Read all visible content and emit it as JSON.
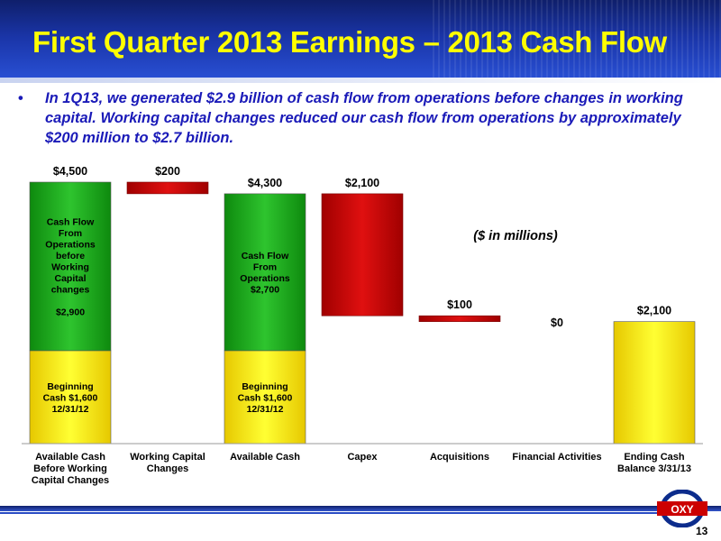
{
  "header": {
    "title": "First Quarter 2013 Earnings – 2013 Cash Flow"
  },
  "bullet": {
    "marker": "•",
    "text": "In 1Q13, we generated $2.9 billion of cash flow from operations before changes in working capital.  Working capital changes reduced our cash flow from operations by approximately $200 million to $2.7 billion."
  },
  "units_note": "($ in millions)",
  "logo": {
    "text": "OXY"
  },
  "page_number": "13",
  "colors": {
    "green": "#1aa81a",
    "yellow": "#ffee00",
    "red": "#cc0000",
    "title": "#ffff00",
    "bullet": "#1a1ab8"
  },
  "chart_data": {
    "type": "bar",
    "subtype": "waterfall",
    "ylim": [
      0,
      4500
    ],
    "categories": [
      [
        "Available Cash",
        "Before Working",
        "Capital Changes"
      ],
      [
        "Working Capital",
        "Changes"
      ],
      [
        "Available Cash"
      ],
      [
        "Capex"
      ],
      [
        "Acquisitions"
      ],
      [
        "Financial Activities"
      ],
      [
        "Ending Cash",
        "Balance 3/31/13"
      ]
    ],
    "bars": [
      {
        "label": "$4,500",
        "segments": [
          {
            "from": 0,
            "to": 1600,
            "color": "yellow",
            "text": [
              "Beginning",
              "Cash $1,600",
              "12/31/12"
            ]
          },
          {
            "from": 1600,
            "to": 4500,
            "color": "green",
            "text": [
              "Cash Flow",
              "From",
              "Operations",
              "before",
              "Working",
              "Capital",
              "changes",
              "",
              "$2,900"
            ]
          }
        ]
      },
      {
        "label": "$200",
        "segments": [
          {
            "from": 4300,
            "to": 4500,
            "color": "red",
            "text": []
          }
        ]
      },
      {
        "label": "$4,300",
        "segments": [
          {
            "from": 0,
            "to": 1600,
            "color": "yellow",
            "text": [
              "Beginning",
              "Cash $1,600",
              "12/31/12"
            ]
          },
          {
            "from": 1600,
            "to": 4300,
            "color": "green",
            "text": [
              "Cash Flow",
              "From",
              "Operations",
              "$2,700"
            ]
          }
        ]
      },
      {
        "label": "$2,100",
        "segments": [
          {
            "from": 2200,
            "to": 4300,
            "color": "red",
            "text": []
          }
        ]
      },
      {
        "label": "$100",
        "segments": [
          {
            "from": 2100,
            "to": 2200,
            "color": "red",
            "text": []
          }
        ]
      },
      {
        "label": "$0",
        "segments": []
      },
      {
        "label": "$2,100",
        "segments": [
          {
            "from": 0,
            "to": 2100,
            "color": "yellow",
            "text": []
          }
        ]
      }
    ]
  }
}
